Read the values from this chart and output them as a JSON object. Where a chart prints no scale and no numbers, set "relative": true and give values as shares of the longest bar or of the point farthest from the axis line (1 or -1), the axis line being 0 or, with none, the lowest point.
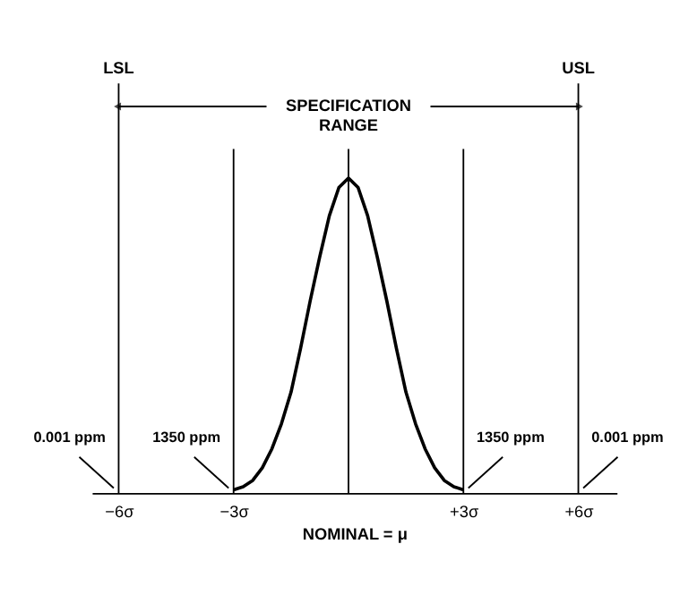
{
  "chart_data": {
    "type": "line",
    "relative": true,
    "xlabel": "NOMINAL = μ",
    "x": [
      -3,
      -2.75,
      -2.5,
      -2.25,
      -2,
      -1.75,
      -1.5,
      -1.25,
      -1,
      -0.75,
      -0.5,
      -0.25,
      0,
      0.25,
      0.5,
      0.75,
      1,
      1.25,
      1.5,
      1.75,
      2,
      2.25,
      2.5,
      2.75,
      3
    ],
    "series": [
      {
        "color": "#000000",
        "values": [
          0.01,
          0.02,
          0.04,
          0.08,
          0.14,
          0.22,
          0.32,
          0.46,
          0.61,
          0.75,
          0.88,
          0.97,
          1,
          0.97,
          0.88,
          0.75,
          0.61,
          0.46,
          0.32,
          0.22,
          0.14,
          0.08,
          0.04,
          0.02,
          0.01
        ]
      }
    ],
    "xlim": [
      -6.7,
      7.0
    ],
    "xticks": [
      {
        "value": -6,
        "label": "−6σ"
      },
      {
        "value": -3,
        "label": "−3σ"
      },
      {
        "value": 3,
        "label": "+3σ"
      },
      {
        "value": 6,
        "label": "+6σ"
      }
    ],
    "ref_lines": [
      {
        "axis": "x",
        "value": -6,
        "label": "LSL"
      },
      {
        "axis": "x",
        "value": -3
      },
      {
        "axis": "x",
        "value": 0
      },
      {
        "axis": "x",
        "value": 3
      },
      {
        "axis": "x",
        "value": 6,
        "label": "USL"
      }
    ],
    "annotations": [
      "SPECIFICATION RANGE",
      {
        "text": "0.001 ppm",
        "x": -6,
        "y": 0
      },
      {
        "text": "1350 ppm",
        "x": -3,
        "y": 0
      },
      {
        "text": "1350 ppm",
        "x": 3,
        "y": 0
      },
      {
        "text": "0.001 ppm",
        "x": 6,
        "y": 0
      }
    ],
    "grid": false,
    "marker": "none",
    "line_style": "solid"
  }
}
